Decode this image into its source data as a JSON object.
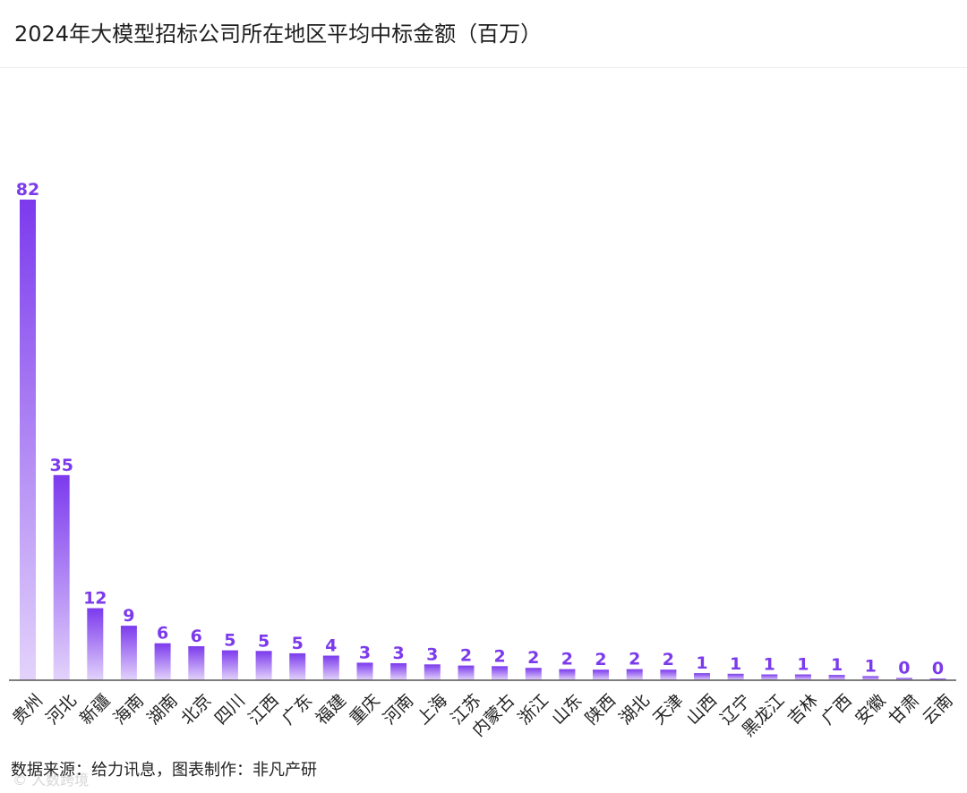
{
  "title": "2024年大模型招标公司所在地区平均中标金额（百万）",
  "source": "数据来源：给力讯息，图表制作：非凡产研",
  "watermark": "© 人数跨境",
  "colors": {
    "bar_top": "#7c3aed",
    "bar_bottom": "#e3d3fb",
    "label": "#7c3aed",
    "axis": "#555555"
  },
  "chart_data": {
    "type": "bar",
    "title": "2024年大模型招标公司所在地区平均中标金额（百万）",
    "xlabel": "",
    "ylabel": "",
    "ylim": [
      0,
      82
    ],
    "grid": false,
    "categories": [
      "贵州",
      "河北",
      "新疆",
      "海南",
      "湖南",
      "北京",
      "四川",
      "江西",
      "广东",
      "福建",
      "重庆",
      "河南",
      "上海",
      "江苏",
      "内蒙古",
      "浙江",
      "山东",
      "陕西",
      "湖北",
      "天津",
      "山西",
      "辽宁",
      "黑龙江",
      "吉林",
      "广西",
      "安徽",
      "甘肃",
      "云南"
    ],
    "values": [
      82,
      35,
      12,
      9,
      6,
      6,
      5,
      5,
      5,
      4,
      3,
      3,
      3,
      2,
      2,
      2,
      2,
      2,
      2,
      2,
      1,
      1,
      1,
      1,
      1,
      1,
      0,
      0
    ],
    "bar_values": [
      82,
      35,
      12.3,
      9.3,
      6.3,
      5.8,
      5.1,
      5.0,
      4.6,
      4.2,
      3.0,
      2.9,
      2.7,
      2.5,
      2.4,
      2.1,
      1.9,
      1.8,
      1.9,
      1.8,
      1.2,
      1.1,
      1.0,
      1.0,
      0.9,
      0.7,
      0.4,
      0.3
    ]
  }
}
